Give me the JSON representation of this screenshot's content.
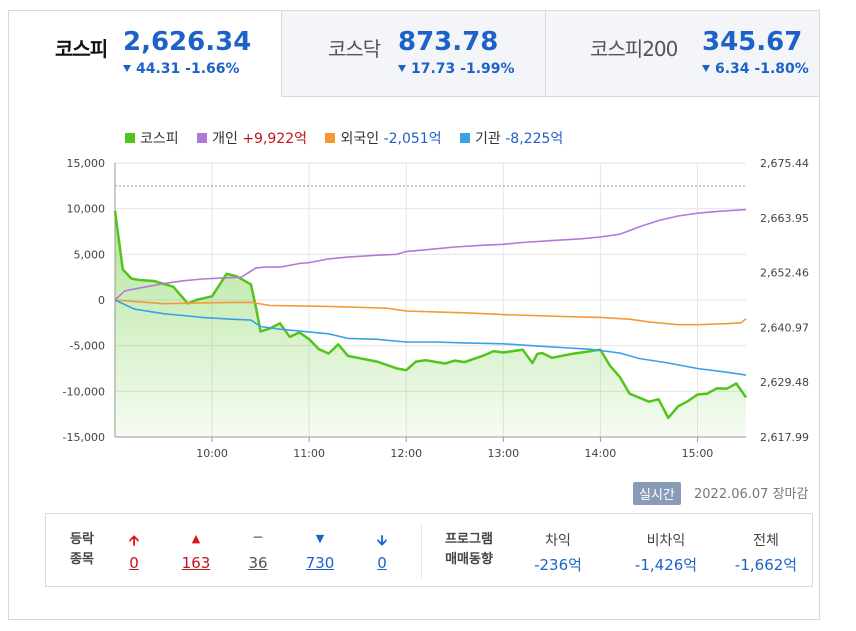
{
  "tabs": [
    {
      "name": "코스피",
      "value": "2,626.34",
      "change": "44.31",
      "pct": "-1.66%"
    },
    {
      "name": "코스닥",
      "value": "873.78",
      "change": "17.73",
      "pct": "-1.99%"
    },
    {
      "name": "코스피200",
      "value": "345.67",
      "change": "6.34",
      "pct": "-1.80%"
    }
  ],
  "legend": {
    "kospi": "코스피",
    "individual_label": "개인",
    "individual_value": "+9,922억",
    "foreign_label": "외국인",
    "foreign_value": "-2,051억",
    "institution_label": "기관",
    "institution_value": "-8,225억"
  },
  "colors": {
    "kospi": "#52c41a",
    "individual": "#b27ad6",
    "foreign": "#f39a38",
    "institution": "#3ca0e6"
  },
  "chart_data": {
    "type": "line",
    "x_ticks": [
      "10:00",
      "11:00",
      "12:00",
      "13:00",
      "14:00",
      "15:00"
    ],
    "y_left_ticks": [
      "15,000",
      "10,000",
      "5,000",
      "0",
      "-5,000",
      "-10,000",
      "-15,000"
    ],
    "y_right_ticks": [
      "2,675.44",
      "2,663.95",
      "2,652.46",
      "2,640.97",
      "2,629.48",
      "2,617.99"
    ],
    "ylim_left": [
      -15000,
      15000
    ],
    "ylim_right": [
      2617.99,
      2675.44
    ],
    "xlim": [
      9.0,
      15.5
    ],
    "reference_line": 2670.65,
    "series": [
      {
        "name": "코스피",
        "axis": "right",
        "area": true,
        "x": [
          9.0,
          9.08,
          9.17,
          9.25,
          9.4,
          9.6,
          9.75,
          9.85,
          10.0,
          10.15,
          10.25,
          10.4,
          10.45,
          10.5,
          10.6,
          10.7,
          10.8,
          10.9,
          11.0,
          11.1,
          11.2,
          11.3,
          11.4,
          11.5,
          11.7,
          11.9,
          12.0,
          12.1,
          12.2,
          12.4,
          12.5,
          12.6,
          12.8,
          12.9,
          13.0,
          13.2,
          13.3,
          13.35,
          13.4,
          13.5,
          13.7,
          14.0,
          14.1,
          14.2,
          14.3,
          14.5,
          14.6,
          14.7,
          14.8,
          14.9,
          15.0,
          15.1,
          15.2,
          15.3,
          15.4,
          15.5
        ],
        "y": [
          2665.4,
          2653.1,
          2651.2,
          2650.9,
          2650.7,
          2649.5,
          2646.0,
          2646.8,
          2647.5,
          2652.2,
          2651.7,
          2650.0,
          2645.3,
          2640.1,
          2640.8,
          2641.8,
          2639.0,
          2639.9,
          2638.5,
          2636.4,
          2635.5,
          2637.4,
          2635.0,
          2634.6,
          2633.8,
          2632.4,
          2632.0,
          2633.8,
          2634.1,
          2633.4,
          2634.0,
          2633.7,
          2635.1,
          2636.0,
          2635.7,
          2636.3,
          2633.5,
          2635.4,
          2635.6,
          2634.6,
          2635.4,
          2636.3,
          2632.9,
          2630.6,
          2627.1,
          2625.4,
          2625.9,
          2622.0,
          2624.4,
          2625.5,
          2626.9,
          2627.1,
          2628.2,
          2628.1,
          2629.2,
          2626.3
        ]
      },
      {
        "name": "개인",
        "axis": "left",
        "x": [
          9.0,
          9.1,
          9.3,
          9.5,
          9.7,
          9.9,
          10.1,
          10.3,
          10.45,
          10.55,
          10.7,
          10.9,
          11.0,
          11.2,
          11.4,
          11.7,
          11.9,
          12.0,
          12.2,
          12.5,
          12.8,
          13.0,
          13.2,
          13.5,
          13.8,
          14.0,
          14.2,
          14.4,
          14.6,
          14.8,
          15.0,
          15.2,
          15.5
        ],
        "y": [
          0,
          1000,
          1400,
          1800,
          2100,
          2300,
          2400,
          2500,
          3500,
          3600,
          3600,
          4000,
          4100,
          4500,
          4700,
          4900,
          5000,
          5300,
          5500,
          5800,
          6000,
          6100,
          6300,
          6500,
          6700,
          6900,
          7200,
          8000,
          8700,
          9200,
          9500,
          9700,
          9900
        ]
      },
      {
        "name": "외국인",
        "axis": "left",
        "x": [
          9.0,
          9.5,
          10.0,
          10.4,
          10.6,
          10.9,
          11.2,
          11.5,
          11.8,
          12.0,
          12.3,
          12.6,
          13.0,
          13.3,
          13.6,
          14.0,
          14.3,
          14.5,
          14.8,
          15.0,
          15.3,
          15.45,
          15.5
        ],
        "y": [
          0,
          -400,
          -300,
          -250,
          -600,
          -650,
          -700,
          -800,
          -900,
          -1200,
          -1300,
          -1400,
          -1600,
          -1700,
          -1800,
          -1900,
          -2100,
          -2400,
          -2700,
          -2700,
          -2600,
          -2500,
          -2051
        ]
      },
      {
        "name": "기관",
        "axis": "left",
        "x": [
          9.0,
          9.2,
          9.5,
          9.7,
          9.9,
          10.2,
          10.4,
          10.5,
          10.7,
          10.9,
          11.2,
          11.4,
          11.7,
          12.0,
          12.3,
          12.6,
          13.0,
          13.3,
          13.6,
          13.9,
          14.2,
          14.4,
          14.7,
          15.0,
          15.3,
          15.5
        ],
        "y": [
          0,
          -1000,
          -1500,
          -1700,
          -1900,
          -2100,
          -2200,
          -2900,
          -3200,
          -3400,
          -3700,
          -4200,
          -4300,
          -4600,
          -4600,
          -4700,
          -4800,
          -5000,
          -5200,
          -5400,
          -5800,
          -6400,
          -6900,
          -7500,
          -7900,
          -8225
        ]
      }
    ]
  },
  "footer": {
    "badge": "실시간",
    "date": "2022.06.07",
    "status": "장마감"
  },
  "breadth": {
    "label_line1": "등락",
    "label_line2": "종목",
    "upper_limit": "0",
    "up": "163",
    "flat": "36",
    "down": "730",
    "lower_limit": "0",
    "upper_limit_icon": "arrow-up-icon",
    "up_icon": "triangle-up-icon",
    "flat_icon": "dash-icon",
    "down_icon": "triangle-down-icon",
    "lower_limit_icon": "arrow-down-icon"
  },
  "program": {
    "label_line1": "프로그램",
    "label_line2": "매매동향",
    "arb_label": "차익",
    "arb_value": "-236억",
    "nonarb_label": "비차익",
    "nonarb_value": "-1,426억",
    "total_label": "전체",
    "total_value": "-1,662억"
  }
}
